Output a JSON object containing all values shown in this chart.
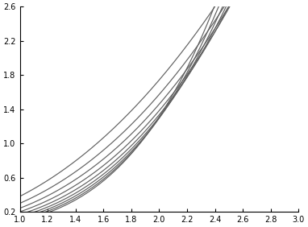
{
  "xlim": [
    1.0,
    3.0
  ],
  "ylim": [
    0.2,
    2.6
  ],
  "xticks": [
    1.0,
    1.2,
    1.4,
    1.6,
    1.8,
    2.0,
    2.2,
    2.4,
    2.6,
    2.8,
    3.0
  ],
  "yticks": [
    0.2,
    0.6,
    1.0,
    1.4,
    1.8,
    2.2,
    2.6
  ],
  "H_values": [
    0.1,
    0.2,
    0.3,
    0.4,
    0.5,
    0.6,
    0.7,
    0.8,
    0.9
  ],
  "x_start": 1.0,
  "x_end": 3.0,
  "n_points": 300,
  "line_color": "#606060",
  "background_color": "#ffffff",
  "line_width": 0.85
}
